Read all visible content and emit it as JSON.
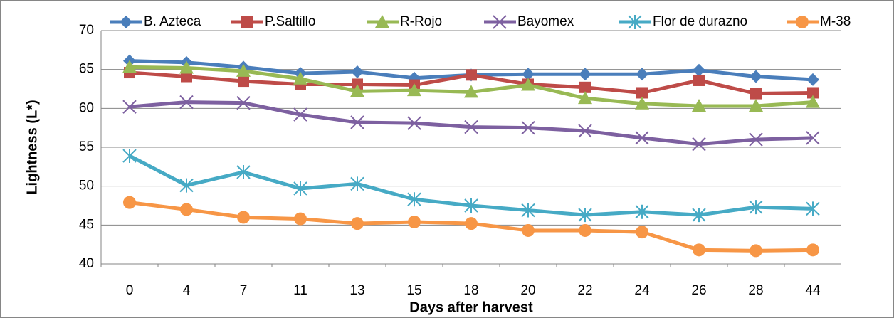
{
  "chart_data": {
    "type": "line",
    "y_label": "Lightness  (L*)",
    "x_label": "Days after harvest",
    "categories": [
      "0",
      "4",
      "7",
      "11",
      "13",
      "15",
      "18",
      "20",
      "22",
      "24",
      "26",
      "28",
      "44"
    ],
    "ylim": [
      40,
      70
    ],
    "yticks": [
      40,
      45,
      50,
      55,
      60,
      65,
      70
    ],
    "grid": true,
    "series": [
      {
        "name": "B. Azteca",
        "color": "#4a7ebb",
        "marker": "diamond",
        "values": [
          66.1,
          65.9,
          65.3,
          64.5,
          64.7,
          63.9,
          64.3,
          64.4,
          64.4,
          64.4,
          64.9,
          64.1,
          63.7
        ]
      },
      {
        "name": "P.Saltillo",
        "color": "#be4b48",
        "marker": "square",
        "values": [
          64.6,
          64.1,
          63.5,
          63.1,
          63.1,
          63.0,
          64.3,
          63.1,
          62.7,
          62.0,
          63.6,
          61.9,
          62.0
        ]
      },
      {
        "name": "R-Rojo",
        "color": "#98b954",
        "marker": "triangle",
        "values": [
          65.3,
          65.2,
          64.8,
          63.8,
          62.2,
          62.3,
          62.1,
          63.0,
          61.3,
          60.6,
          60.3,
          60.3,
          60.8
        ]
      },
      {
        "name": "Bayomex",
        "color": "#7d60a0",
        "marker": "x",
        "values": [
          60.2,
          60.8,
          60.7,
          59.2,
          58.2,
          58.1,
          57.6,
          57.5,
          57.1,
          56.2,
          55.4,
          56.0,
          56.2
        ]
      },
      {
        "name": "Flor de durazno",
        "color": "#46aac5",
        "marker": "star",
        "values": [
          53.9,
          50.1,
          51.8,
          49.7,
          50.3,
          48.3,
          47.5,
          46.9,
          46.3,
          46.7,
          46.3,
          47.3,
          47.1
        ]
      },
      {
        "name": "M-38",
        "color": "#f79646",
        "marker": "circle",
        "values": [
          47.9,
          47.0,
          46.0,
          45.8,
          45.2,
          45.4,
          45.2,
          44.3,
          44.3,
          44.1,
          41.8,
          41.7,
          41.8
        ]
      }
    ]
  }
}
